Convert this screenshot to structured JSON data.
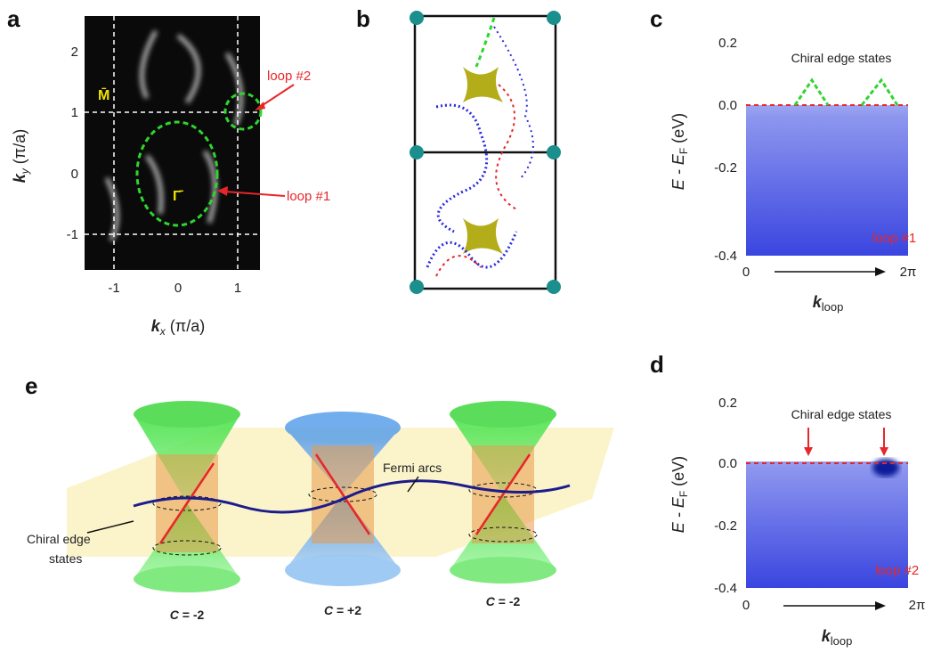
{
  "panels": {
    "a": {
      "label": "a",
      "y_axis": {
        "symbol": "k",
        "subscript": "y",
        "unit": "(π/a)"
      },
      "x_axis": {
        "symbol": "k",
        "subscript": "x",
        "unit": "(π/a)"
      },
      "yticks": [
        "2",
        "1",
        "0",
        "-1"
      ],
      "xticks": [
        "-1",
        "0",
        "1"
      ],
      "points": {
        "M": "M̄",
        "Gamma": "Γ̄"
      },
      "annotations": [
        "loop #2",
        "loop #1"
      ]
    },
    "b": {
      "label": "b"
    },
    "c": {
      "label": "c",
      "y_axis": {
        "main": "E - E",
        "subscript": "F",
        "unit": "(eV)"
      },
      "x_axis": {
        "symbol": "k",
        "subscript": "loop"
      },
      "yticks": [
        "0.2",
        "0.0",
        "-0.2",
        "-0.4"
      ],
      "xticks": [
        "0",
        "2π"
      ],
      "annotation": "Chiral edge states",
      "loop": "loop #1"
    },
    "d": {
      "label": "d",
      "y_axis": {
        "main": "E - E",
        "subscript": "F",
        "unit": "(eV)"
      },
      "x_axis": {
        "symbol": "k",
        "subscript": "loop"
      },
      "yticks": [
        "0.2",
        "0.0",
        "-0.2",
        "-0.4"
      ],
      "xticks": [
        "0",
        "2π"
      ],
      "annotation": "Chiral edge states",
      "loop": "loop #2"
    },
    "e": {
      "label": "e",
      "fermi_arcs": "Fermi arcs",
      "chiral_edge_states": [
        "Chiral edge",
        "states"
      ],
      "chern": [
        {
          "symbol": "C",
          "value": "= -2"
        },
        {
          "symbol": "C",
          "value": "= +2"
        },
        {
          "symbol": "C",
          "value": "= -2"
        }
      ]
    }
  }
}
